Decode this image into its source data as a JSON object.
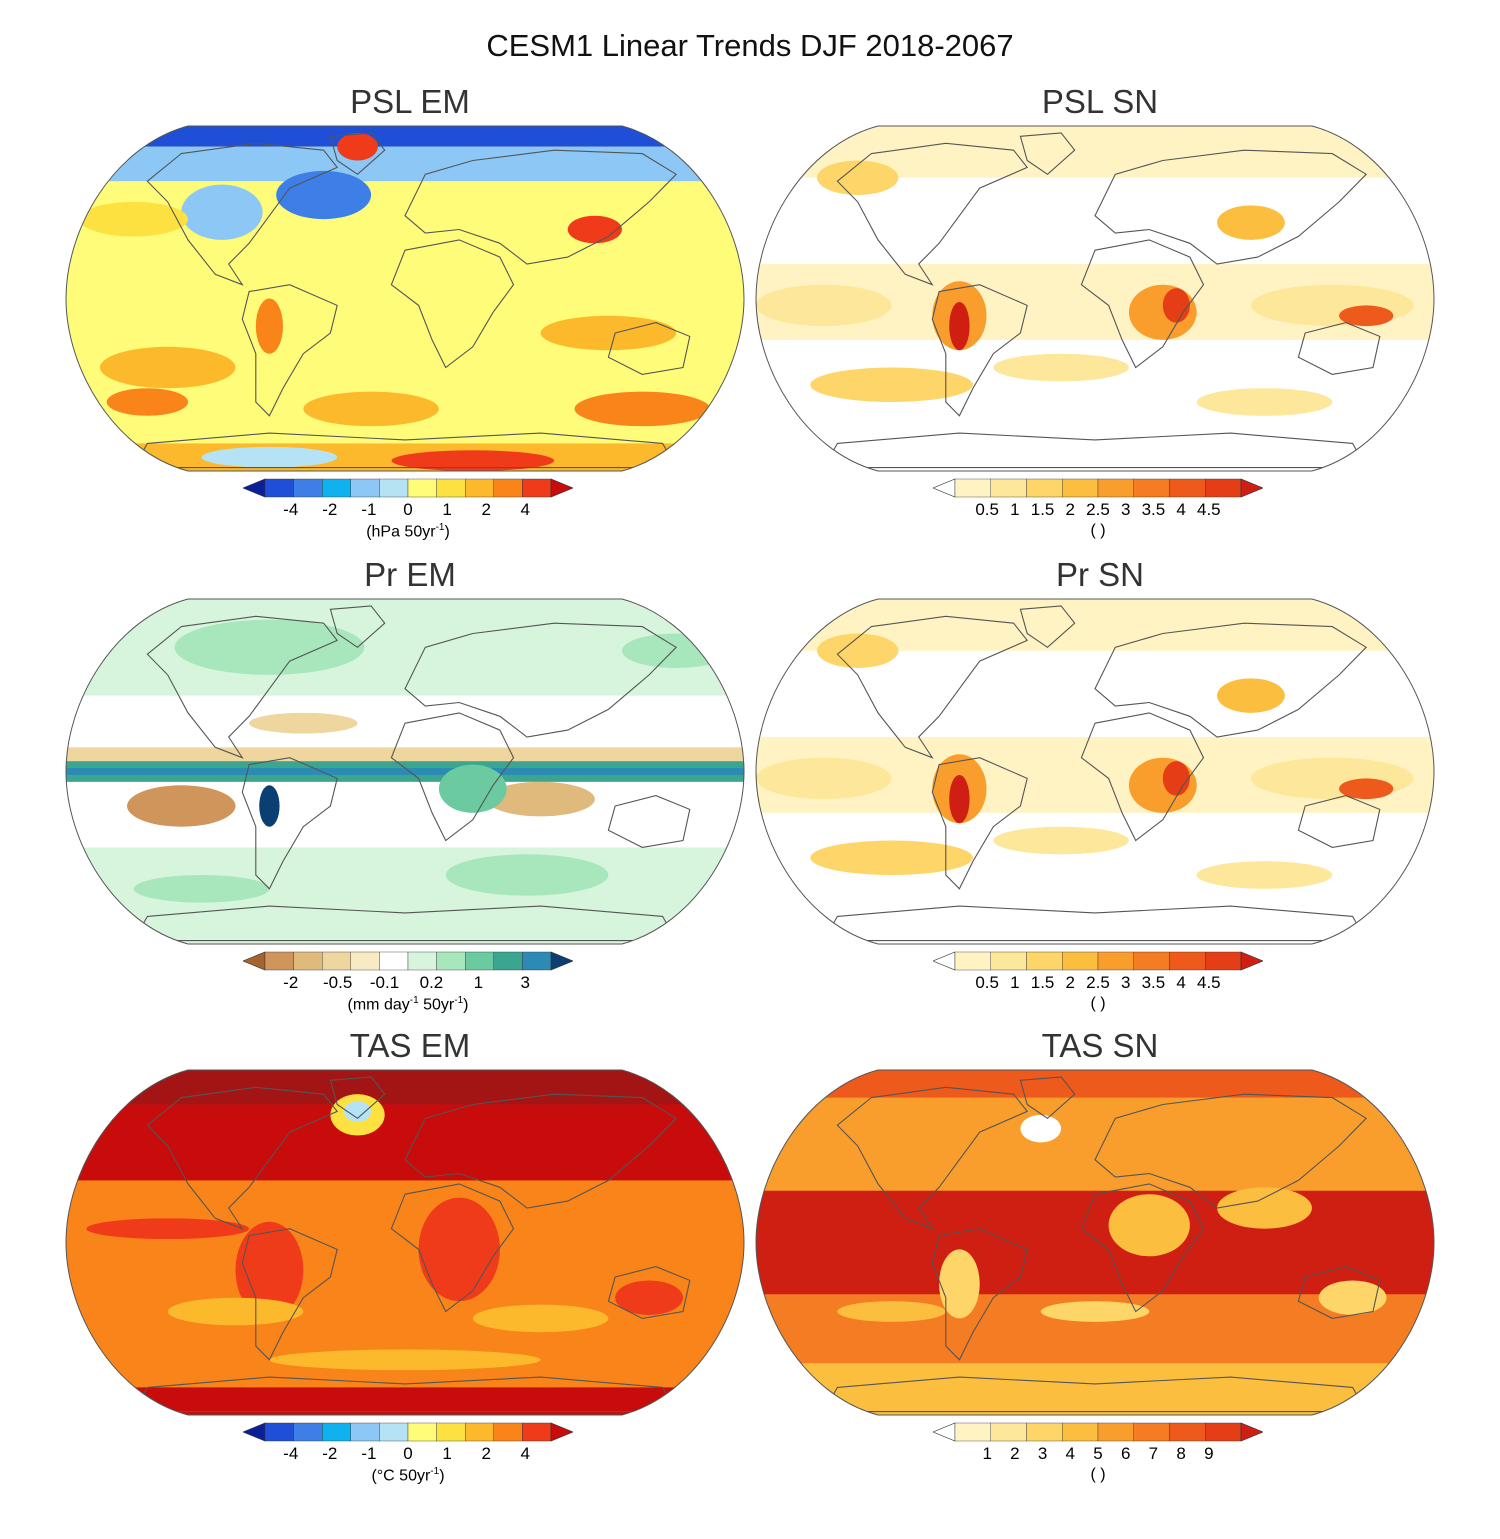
{
  "title": "CESM1 Linear Trends DJF 2018-2067",
  "panels": [
    {
      "title": "PSL EM",
      "scheme": "psl_em",
      "ticks": [
        "-4",
        "-2",
        "-1",
        "0",
        "1",
        "2",
        "4"
      ],
      "units_pre": "(hPa 50yr",
      "units_sup": "-1",
      "units_post": ")"
    },
    {
      "title": "PSL SN",
      "scheme": "sn",
      "ticks": [
        "0.5",
        "1",
        "1.5",
        "2",
        "2.5",
        "3",
        "3.5",
        "4",
        "4.5"
      ],
      "units_pre": "( )",
      "units_sup": "",
      "units_post": ""
    },
    {
      "title": "Pr EM",
      "scheme": "pr_em",
      "ticks": [
        "-2",
        "-0.5",
        "-0.1",
        "0.2",
        "1",
        "3"
      ],
      "units_pre": "(mm day",
      "units_sup": "-1",
      "units_mid": " 50yr",
      "units_sup2": "-1",
      "units_post": ")"
    },
    {
      "title": "Pr SN",
      "scheme": "sn",
      "ticks": [
        "0.5",
        "1",
        "1.5",
        "2",
        "2.5",
        "3",
        "3.5",
        "4",
        "4.5"
      ],
      "units_pre": "( )",
      "units_sup": "",
      "units_post": ""
    },
    {
      "title": "TAS EM",
      "scheme": "tas_em",
      "ticks": [
        "-4",
        "-2",
        "-1",
        "0",
        "1",
        "2",
        "4"
      ],
      "units_pre": "(°C 50yr",
      "units_sup": "-1",
      "units_post": ")"
    },
    {
      "title": "TAS SN",
      "scheme": "tas_sn",
      "ticks": [
        "1",
        "2",
        "3",
        "4",
        "5",
        "6",
        "7",
        "8",
        "9"
      ],
      "units_pre": "( )",
      "units_sup": "",
      "units_post": ""
    }
  ],
  "colors": {
    "diverging_temp": [
      "#0a1f99",
      "#1f4fd6",
      "#3d7fe6",
      "#0fb1ef",
      "#8cc7f5",
      "#b5e3f5",
      "#fffc7a",
      "#fde140",
      "#fcb92b",
      "#f98419",
      "#ef3b1a",
      "#c80b0b"
    ],
    "sn_scale": [
      "#ffffff",
      "#fff3c4",
      "#fde79a",
      "#fdd568",
      "#fbbe3f",
      "#f99e2d",
      "#f47c22",
      "#ee5a1b",
      "#e53e17",
      "#cf1e12"
    ],
    "precip": [
      "#a5642e",
      "#cf955a",
      "#e0b97c",
      "#efd59e",
      "#f7ebc4",
      "#ffffff",
      "#d6f5dc",
      "#a8e6bc",
      "#6ccaa0",
      "#3aa690",
      "#2c8bb4",
      "#0b3f73"
    ]
  }
}
